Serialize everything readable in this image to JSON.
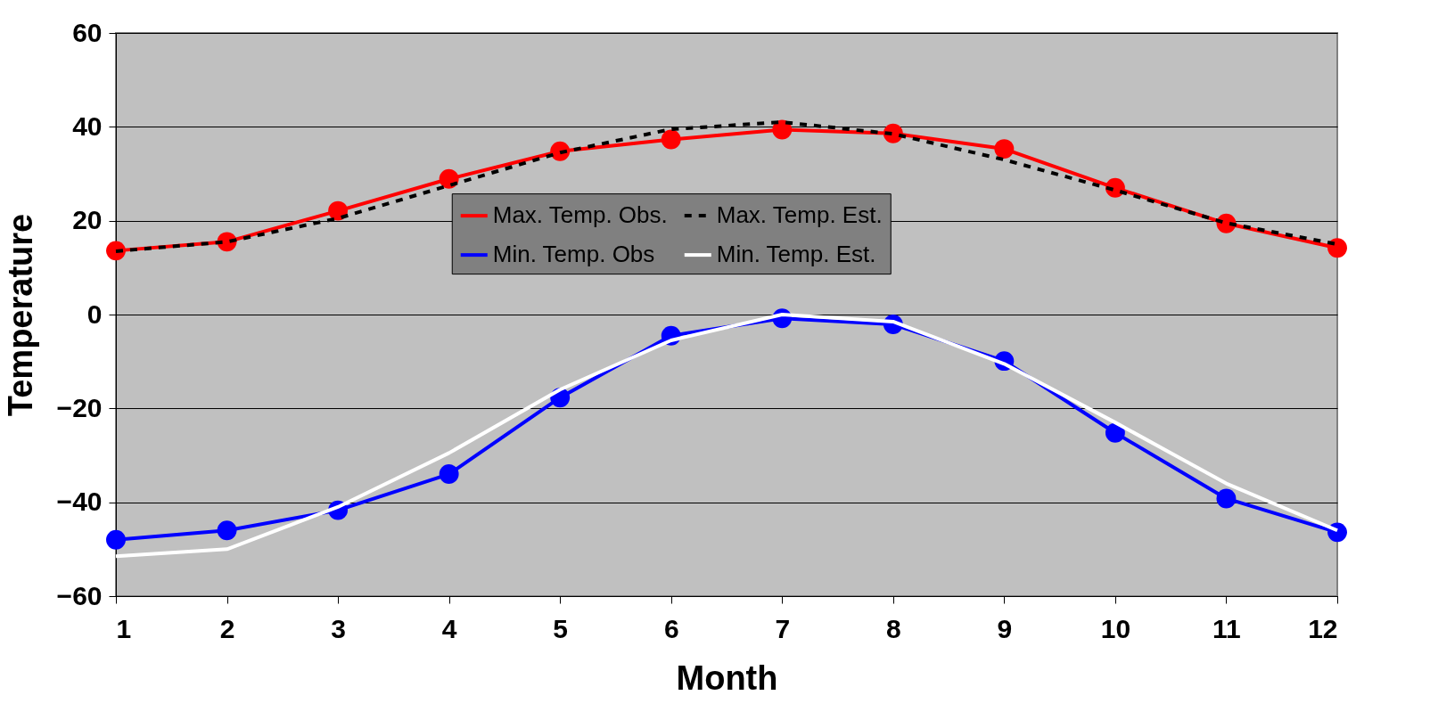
{
  "chart_data": {
    "type": "line",
    "xlabel": "Month",
    "ylabel": "Temperature",
    "x": [
      1,
      2,
      3,
      4,
      5,
      6,
      7,
      8,
      9,
      10,
      11,
      12
    ],
    "xlim": [
      1,
      12
    ],
    "xticks": [
      1,
      2,
      3,
      4,
      5,
      6,
      7,
      8,
      9,
      10,
      11,
      12
    ],
    "ylim": [
      -60,
      60
    ],
    "yticks": [
      -60,
      -40,
      -20,
      0,
      20,
      40,
      60
    ],
    "grid": "y",
    "legend": "top",
    "series": [
      {
        "name": "Max. Temp. Obs.",
        "color": "#ff0000",
        "marker": "circle",
        "line_style": "solid",
        "values": [
          13.6,
          15.5,
          22.1,
          28.9,
          34.8,
          37.3,
          39.4,
          38.6,
          35.3,
          27.0,
          19.4,
          14.2
        ]
      },
      {
        "name": "Max. Temp. Est.",
        "color": "#000000",
        "marker": "none",
        "line_style": "dashed",
        "values": [
          13.5,
          15.5,
          20.5,
          27.5,
          34.5,
          39.5,
          41,
          38.5,
          33,
          26.5,
          19.5,
          15
        ]
      },
      {
        "name": "Min. Temp. Obs",
        "color": "#0000ff",
        "marker": "circle",
        "line_style": "solid",
        "values": [
          -48.0,
          -46.0,
          -41.7,
          -34.0,
          -17.7,
          -4.5,
          -0.8,
          -2.1,
          -9.9,
          -25.2,
          -39.2,
          -46.4
        ]
      },
      {
        "name": "Min. Temp. Est.",
        "color": "#ffffff",
        "marker": "none",
        "line_style": "solid",
        "values": [
          -51.5,
          -50,
          -41,
          -29.5,
          -16,
          -5.5,
          0,
          -1.5,
          -10.5,
          -23,
          -36,
          -46
        ]
      }
    ]
  }
}
